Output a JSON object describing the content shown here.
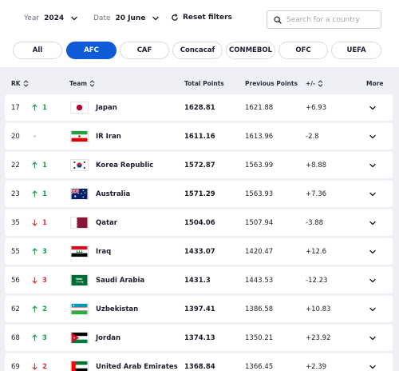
{
  "filters": {
    "year_label": "Year",
    "year_value": "2024",
    "date_label": "Date",
    "date_value": "20 June",
    "reset_label": "Reset filters",
    "search_placeholder": "Search for a country"
  },
  "confederations": [
    "All",
    "AFC",
    "CAF",
    "Concacaf",
    "CONMEBOL",
    "OFC",
    "UEFA"
  ],
  "active_confederation": "AFC",
  "columns": {
    "rank": "RK",
    "team": "Team",
    "total_points": "Total Points",
    "previous_points": "Previous Points",
    "diff": "+/-",
    "more": "More"
  },
  "rows": [
    {
      "rank": "17",
      "move": "up",
      "move_value": "1",
      "team": "Japan",
      "flag": "japan-flag",
      "total": "1628.81",
      "previous": "1621.88",
      "diff": "+6.93"
    },
    {
      "rank": "20",
      "move": "same",
      "move_value": "",
      "team": "IR Iran",
      "flag": "iran-flag",
      "total": "1611.16",
      "previous": "1613.96",
      "diff": "-2.8"
    },
    {
      "rank": "22",
      "move": "up",
      "move_value": "1",
      "team": "Korea Republic",
      "flag": "korea-flag",
      "total": "1572.87",
      "previous": "1563.99",
      "diff": "+8.88"
    },
    {
      "rank": "23",
      "move": "up",
      "move_value": "1",
      "team": "Australia",
      "flag": "australia-flag",
      "total": "1571.29",
      "previous": "1563.93",
      "diff": "+7.36"
    },
    {
      "rank": "35",
      "move": "down",
      "move_value": "1",
      "team": "Qatar",
      "flag": "qatar-flag",
      "total": "1504.06",
      "previous": "1507.94",
      "diff": "-3.88"
    },
    {
      "rank": "55",
      "move": "up",
      "move_value": "3",
      "team": "Iraq",
      "flag": "iraq-flag",
      "total": "1433.07",
      "previous": "1420.47",
      "diff": "+12.6"
    },
    {
      "rank": "56",
      "move": "down",
      "move_value": "3",
      "team": "Saudi Arabia",
      "flag": "saudi-flag",
      "total": "1431.3",
      "previous": "1443.53",
      "diff": "-12.23"
    },
    {
      "rank": "62",
      "move": "up",
      "move_value": "2",
      "team": "Uzbekistan",
      "flag": "uzbekistan-flag",
      "total": "1397.41",
      "previous": "1386.58",
      "diff": "+10.83"
    },
    {
      "rank": "68",
      "move": "up",
      "move_value": "3",
      "team": "Jordan",
      "flag": "jordan-flag",
      "total": "1374.13",
      "previous": "1350.21",
      "diff": "+23.92"
    },
    {
      "rank": "69",
      "move": "down",
      "move_value": "2",
      "team": "United Arab Emirates",
      "flag": "uae-flag",
      "total": "1368.84",
      "previous": "1366.45",
      "diff": "+2.39"
    }
  ],
  "colors": {
    "accent": "#0f5bd8",
    "up": "#16a34a",
    "down": "#d63a3a"
  }
}
